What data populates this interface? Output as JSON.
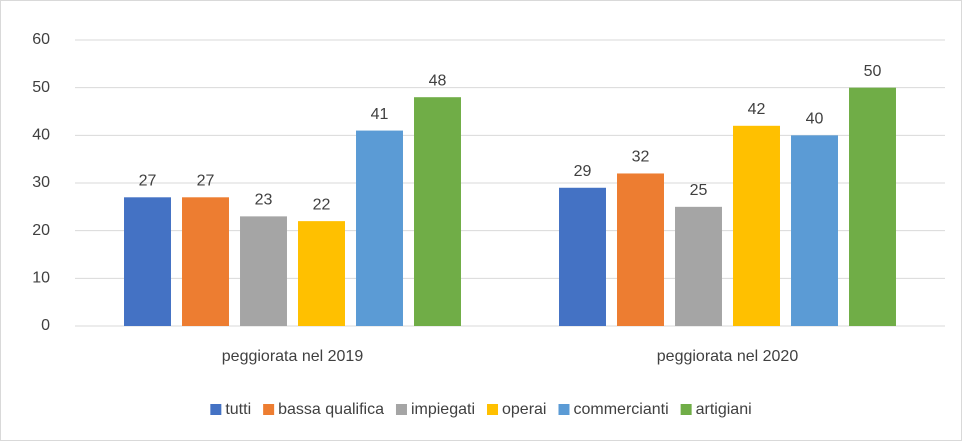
{
  "chart_data": {
    "type": "bar",
    "categories": [
      "peggiorata nel 2019",
      "peggiorata nel 2020"
    ],
    "series": [
      {
        "name": "tutti",
        "color": "#4472c4",
        "values": [
          27,
          29
        ]
      },
      {
        "name": "bassa qualifica",
        "color": "#ed7d31",
        "values": [
          27,
          32
        ]
      },
      {
        "name": "impiegati",
        "color": "#a5a5a5",
        "values": [
          23,
          25
        ]
      },
      {
        "name": "operai",
        "color": "#ffc000",
        "values": [
          22,
          42
        ]
      },
      {
        "name": "commercianti",
        "color": "#5b9bd5",
        "values": [
          41,
          40
        ]
      },
      {
        "name": "artigiani",
        "color": "#70ad47",
        "values": [
          48,
          50
        ]
      }
    ],
    "ylim": [
      0,
      60
    ],
    "yticks": [
      0,
      10,
      20,
      30,
      40,
      50,
      60
    ],
    "grid": true,
    "legend": "bottom"
  }
}
